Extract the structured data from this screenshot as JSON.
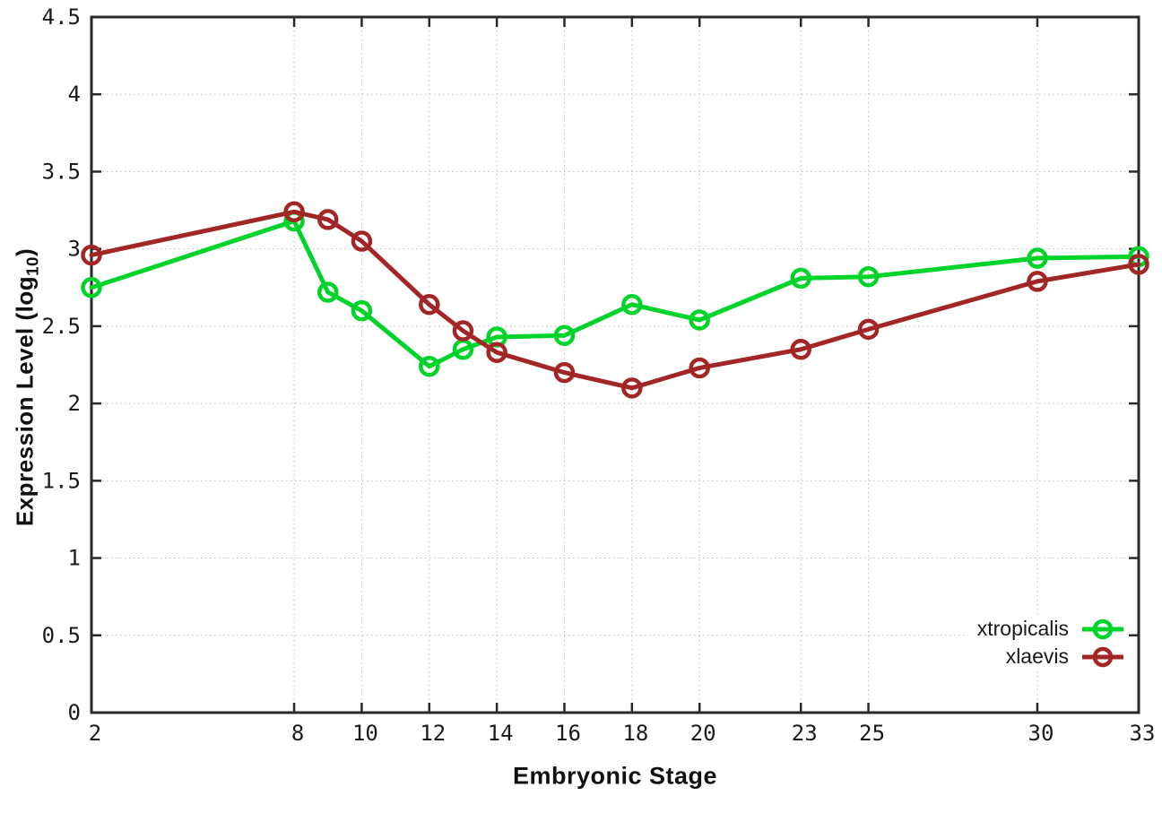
{
  "page": {
    "background": "#ffffff"
  },
  "chart_data": {
    "type": "line",
    "title": "",
    "xlabel": "Embryonic Stage",
    "ylabel": "Expression Level (log10)",
    "ylabel_parts": {
      "pre": "Expression Level (log",
      "sub": "10",
      "post": ")"
    },
    "x": [
      2,
      8,
      9,
      10,
      12,
      13,
      14,
      16,
      18,
      20,
      23,
      25,
      30,
      33
    ],
    "series": [
      {
        "name": "xtropicalis",
        "color": "#00d32a",
        "marker": "open-circle",
        "values": [
          2.75,
          3.18,
          2.72,
          2.6,
          2.24,
          2.35,
          2.43,
          2.44,
          2.64,
          2.54,
          2.81,
          2.82,
          2.94,
          2.95
        ]
      },
      {
        "name": "xlaevis",
        "color": "#a32626",
        "marker": "open-circle",
        "values": [
          2.96,
          3.24,
          3.19,
          3.05,
          2.64,
          2.47,
          2.33,
          2.2,
          2.1,
          2.23,
          2.35,
          2.48,
          2.79,
          2.9
        ]
      }
    ],
    "xticks": [
      2,
      8,
      10,
      12,
      14,
      16,
      18,
      20,
      23,
      25,
      30,
      33
    ],
    "yticks": [
      0,
      0.5,
      1,
      1.5,
      2,
      2.5,
      3,
      3.5,
      4,
      4.5
    ],
    "xlim": [
      2,
      33
    ],
    "ylim": [
      0,
      4.5
    ],
    "grid": true,
    "legend_position": "bottom-right"
  },
  "style": {
    "axis_color": "#2a2a2a",
    "grid_color": "#bbbbbb",
    "text_color": "#1a1a1a"
  }
}
